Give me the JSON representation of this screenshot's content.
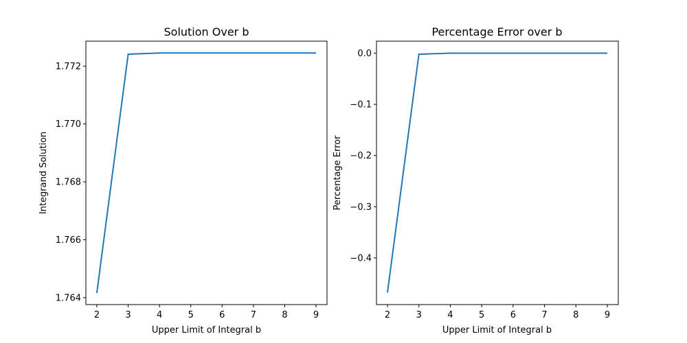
{
  "chart_data": [
    {
      "type": "line",
      "title": "Solution Over b",
      "xlabel": "Upper Limit of Integral b",
      "ylabel": "Integrand Solution",
      "x": [
        2,
        3,
        4,
        5,
        6,
        7,
        8,
        9
      ],
      "series": [
        {
          "values": [
            1.76416,
            1.77241,
            1.77245,
            1.77245,
            1.77245,
            1.77245,
            1.77245,
            1.77245
          ]
        }
      ],
      "xlim": [
        1.65,
        9.35
      ],
      "ylim": [
        1.76376,
        1.77286
      ],
      "xticks": [
        2,
        3,
        4,
        5,
        6,
        7,
        8,
        9
      ],
      "yticks": [
        1.764,
        1.766,
        1.768,
        1.77,
        1.772
      ],
      "ytick_labels": [
        "1.764",
        "1.766",
        "1.768",
        "1.770",
        "1.772"
      ],
      "grid": false,
      "color": "#1f77b4"
    },
    {
      "type": "line",
      "title": "Percentage Error over b",
      "xlabel": "Upper Limit of Integral b",
      "ylabel": "Percentage Error",
      "x": [
        2,
        3,
        4,
        5,
        6,
        7,
        8,
        9
      ],
      "series": [
        {
          "values": [
            -0.4678,
            -0.0022,
            0.0,
            0.0,
            0.0,
            0.0,
            0.0,
            0.0
          ]
        }
      ],
      "xlim": [
        1.65,
        9.35
      ],
      "ylim": [
        -0.4912,
        0.0234
      ],
      "xticks": [
        2,
        3,
        4,
        5,
        6,
        7,
        8,
        9
      ],
      "yticks": [
        -0.4,
        -0.3,
        -0.2,
        -0.1,
        0.0
      ],
      "ytick_labels": [
        "−0.4",
        "−0.3",
        "−0.2",
        "−0.1",
        "0.0"
      ],
      "grid": false,
      "color": "#1f77b4"
    }
  ]
}
